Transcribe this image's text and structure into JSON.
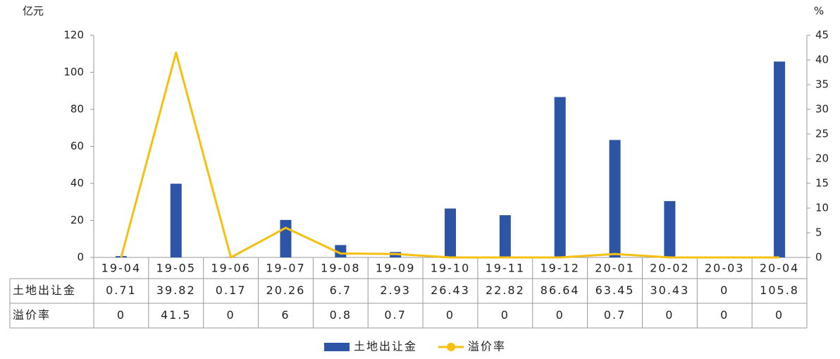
{
  "chart_data": {
    "type": "combo",
    "y_label": "亿元",
    "y2_label": "%",
    "categories": [
      "19-04",
      "19-05",
      "19-06",
      "19-07",
      "19-08",
      "19-09",
      "19-10",
      "19-11",
      "19-12",
      "20-01",
      "20-02",
      "20-03",
      "20-04"
    ],
    "series": [
      {
        "name": "土地出让金",
        "type": "bar",
        "color": "#2e55a5",
        "values": [
          0.71,
          39.82,
          0.17,
          20.26,
          6.7,
          2.93,
          26.43,
          22.82,
          86.64,
          63.45,
          30.43,
          0,
          105.8
        ]
      },
      {
        "name": "溢价率",
        "type": "line",
        "axis": "y2",
        "color": "#f5c010",
        "values": [
          0,
          41.5,
          0,
          6,
          0.8,
          0.7,
          0,
          0,
          0,
          0.7,
          0,
          0,
          0
        ]
      }
    ],
    "ylim": [
      0,
      120
    ],
    "yticks": [
      0,
      20,
      40,
      60,
      80,
      100,
      120
    ],
    "y2lim": [
      0,
      45
    ],
    "y2ticks": [
      0,
      5,
      10,
      15,
      20,
      25,
      30,
      35,
      40,
      45
    ],
    "data_table": true,
    "legend": "bottom"
  }
}
